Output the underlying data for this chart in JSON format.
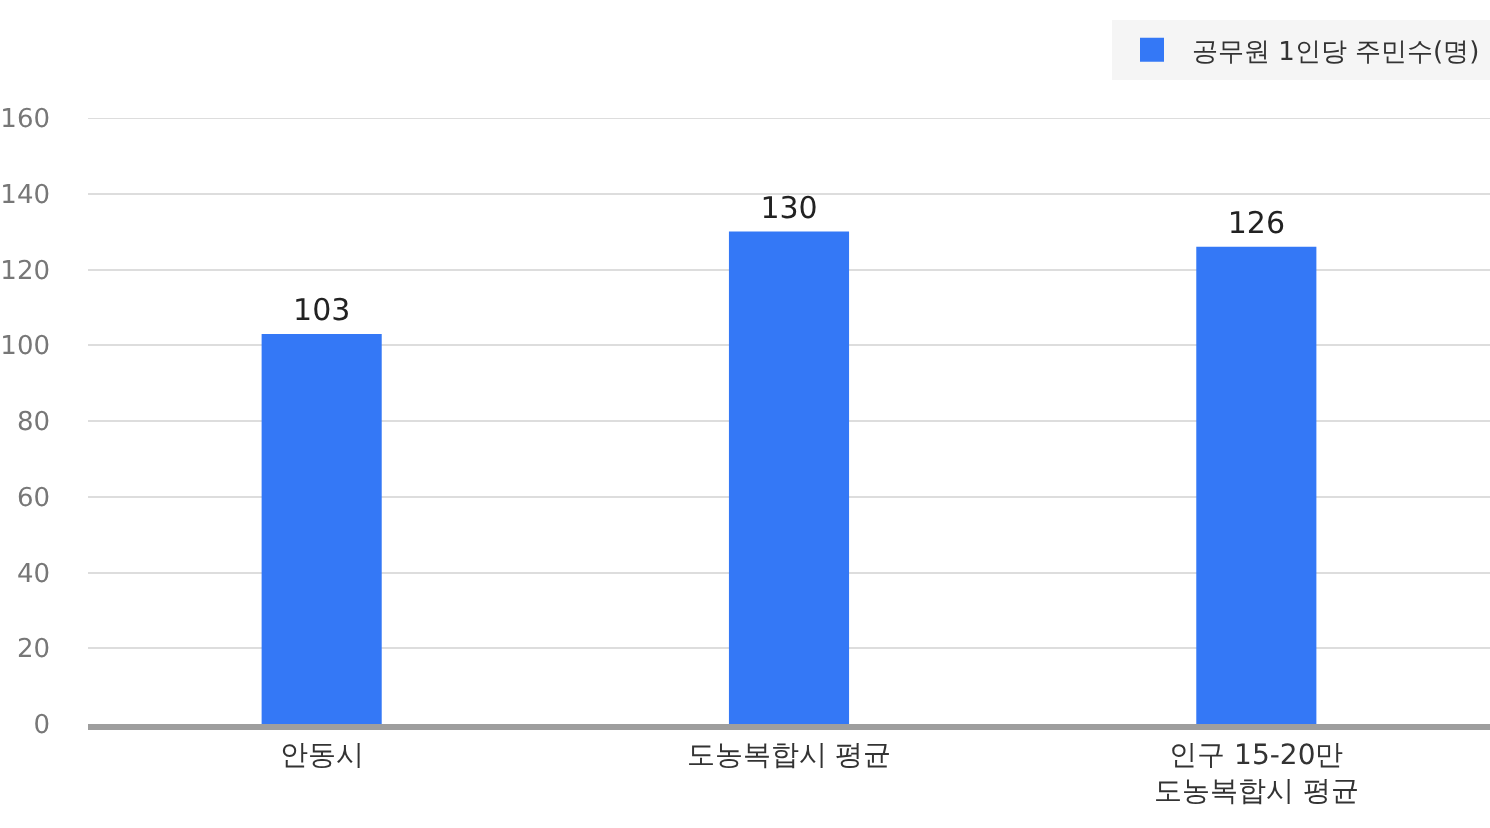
{
  "chart_data": {
    "type": "bar",
    "categories": [
      "안동시",
      "도농복합시 평균",
      "인구 15-20만\n도농복합시 평균"
    ],
    "series": [
      {
        "name": "공무원 1인당 주민수(명)",
        "color": "#3478f6",
        "values": [
          103,
          130,
          126
        ]
      }
    ],
    "ylim": [
      0,
      160
    ],
    "yticks": [
      0,
      20,
      40,
      60,
      80,
      100,
      120,
      140,
      160
    ],
    "grid": "y",
    "legend": "top right",
    "data_labels": true
  }
}
